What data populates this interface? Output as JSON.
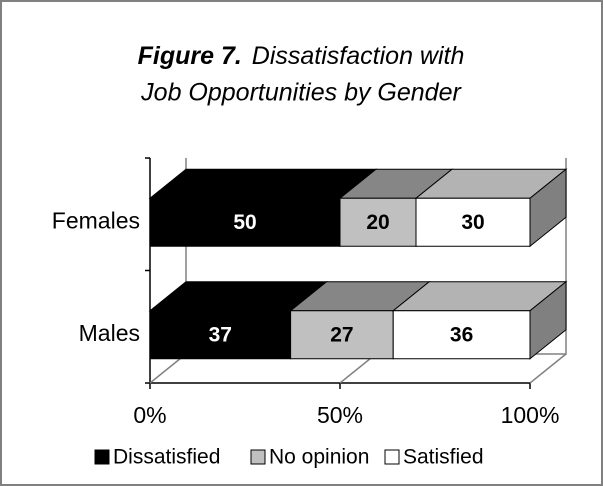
{
  "chart_data": {
    "type": "stacked-bar-3d",
    "title_label": "Figure 7.",
    "title_lines": [
      "Dissatisfaction with",
      "Job Opportunities by Gender"
    ],
    "categories": [
      "Females",
      "Males"
    ],
    "series": [
      {
        "name": "Dissatisfied",
        "color": "#000000",
        "values": [
          50,
          37
        ]
      },
      {
        "name": "No opinion",
        "color": "#c0c0c0",
        "values": [
          20,
          27
        ]
      },
      {
        "name": "Satisfied",
        "color": "#ffffff",
        "values": [
          30,
          36
        ]
      }
    ],
    "xlim": [
      0,
      100
    ],
    "xticks": [
      {
        "value": 0,
        "label": "0%"
      },
      {
        "value": 50,
        "label": "50%"
      },
      {
        "value": 100,
        "label": "100%"
      }
    ],
    "legend": "bottom"
  }
}
